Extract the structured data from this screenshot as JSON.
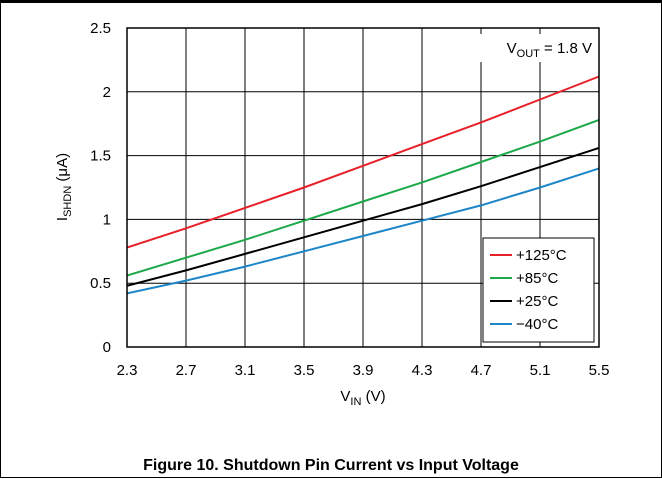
{
  "chart_data": {
    "type": "line",
    "xlabel": {
      "main": "V",
      "sub": "IN",
      "unit": " (V)"
    },
    "ylabel": {
      "main": "I",
      "sub": "SHDN",
      "unit": " (μA)"
    },
    "xlim": [
      2.3,
      5.5
    ],
    "ylim": [
      0,
      2.5
    ],
    "x_ticks": [
      "2.3",
      "2.7",
      "3.1",
      "3.5",
      "3.9",
      "4.3",
      "4.7",
      "5.1",
      "5.5"
    ],
    "y_ticks": [
      "0",
      "0.5",
      "1",
      "1.5",
      "2",
      "2.5"
    ],
    "grid": true,
    "annotation": {
      "main": "V",
      "sub": "OUT",
      "rest": " = 1.8 V"
    },
    "legend_position": "bottom-right",
    "series": [
      {
        "name": "+125°C",
        "color": "#e8202a",
        "x": [
          2.3,
          2.7,
          3.1,
          3.5,
          3.9,
          4.3,
          4.7,
          5.1,
          5.5
        ],
        "y": [
          0.78,
          0.93,
          1.09,
          1.25,
          1.42,
          1.59,
          1.76,
          1.94,
          2.12
        ]
      },
      {
        "name": "+85°C",
        "color": "#1da84a",
        "x": [
          2.3,
          2.7,
          3.1,
          3.5,
          3.9,
          4.3,
          4.7,
          5.1,
          5.5
        ],
        "y": [
          0.56,
          0.7,
          0.84,
          0.99,
          1.14,
          1.29,
          1.45,
          1.61,
          1.78
        ]
      },
      {
        "name": "+25°C",
        "color": "#000000",
        "x": [
          2.3,
          2.7,
          3.1,
          3.5,
          3.9,
          4.3,
          4.7,
          5.1,
          5.5
        ],
        "y": [
          0.48,
          0.6,
          0.73,
          0.86,
          0.99,
          1.12,
          1.26,
          1.41,
          1.56
        ]
      },
      {
        "name": "−40°C",
        "color": "#1c86c8",
        "x": [
          2.3,
          2.7,
          3.1,
          3.5,
          3.9,
          4.3,
          4.7,
          5.1,
          5.5
        ],
        "y": [
          0.42,
          0.52,
          0.63,
          0.75,
          0.87,
          0.99,
          1.11,
          1.25,
          1.4
        ]
      }
    ]
  },
  "caption": "Figure 10. Shutdown Pin Current vs Input Voltage"
}
